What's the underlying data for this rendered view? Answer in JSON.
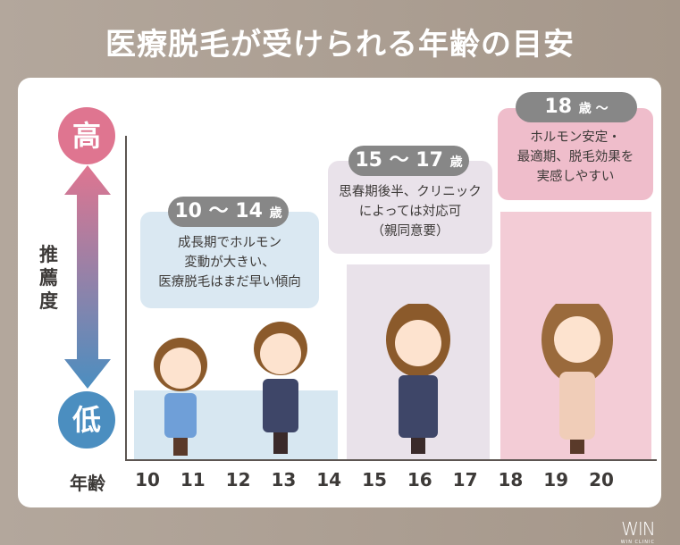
{
  "title": "医療脱毛が受けられる年齢の目安",
  "axis": {
    "high": "高",
    "low": "低",
    "ylabel": "推薦度",
    "xlabel": "年齢",
    "ages": [
      "10",
      "11",
      "12",
      "13",
      "14",
      "15",
      "16",
      "17",
      "18",
      "19",
      "20"
    ]
  },
  "groups": [
    {
      "range": "10 ～ 14",
      "unit": "歳",
      "lines": [
        "成長期でホルモン",
        "変動が大きい、",
        "医療脱毛はまだ早い傾向"
      ],
      "color": "#d7e7f1",
      "level": "low"
    },
    {
      "range": "15 ～ 17",
      "unit": "歳",
      "lines": [
        "思春期後半、クリニック",
        "によっては対応可",
        "（親同意要）"
      ],
      "color": "#e9e2ea",
      "level": "medium"
    },
    {
      "range": "18",
      "unit": "歳 ～",
      "lines": [
        "ホルモン安定・",
        "最適期、脱毛効果を",
        "実感しやすい"
      ],
      "color": "#f3ccd6",
      "level": "high"
    }
  ],
  "colors": {
    "high": "#df7590",
    "low": "#4b8ec0",
    "pill": "#878787"
  },
  "logo": {
    "main": "WIN",
    "sub": "WIN CLINIC"
  }
}
